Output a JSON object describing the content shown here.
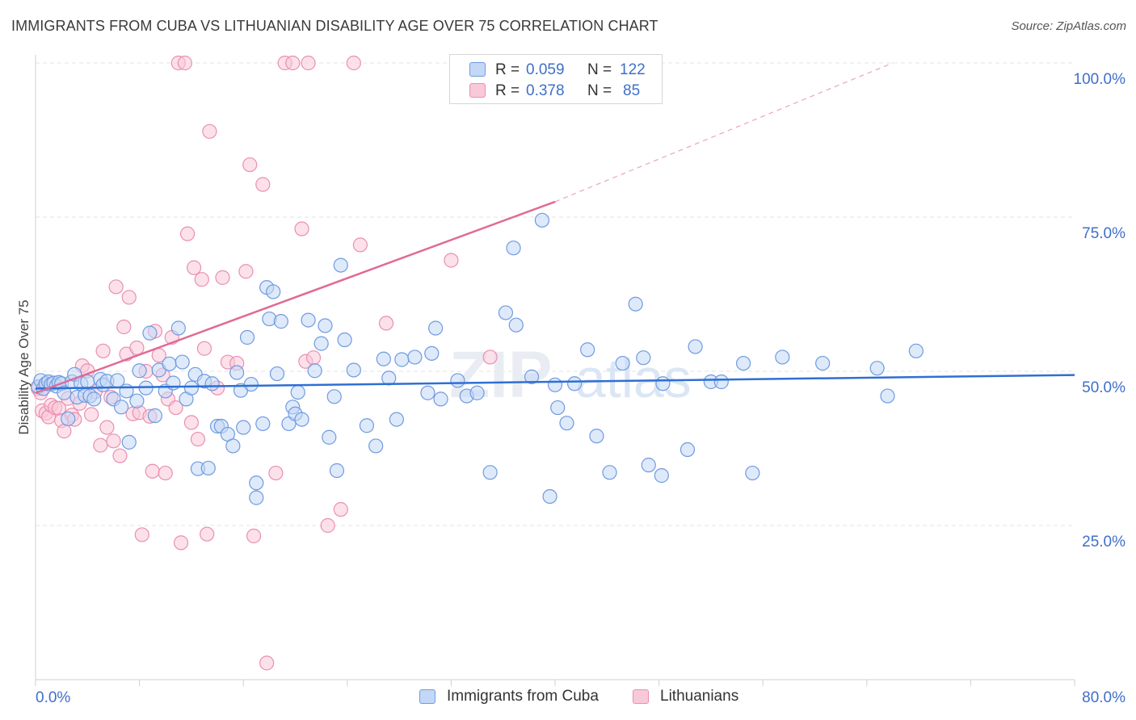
{
  "title": "IMMIGRANTS FROM CUBA VS LITHUANIAN DISABILITY AGE OVER 75 CORRELATION CHART",
  "source": "Source: ZipAtlas.com",
  "watermark": "ZIPatlas",
  "legend": {
    "rows": [
      {
        "r_label": "R =",
        "r_value": "0.059",
        "n_label": "N =",
        "n_value": "122",
        "color": "#6f9be0"
      },
      {
        "r_label": "R =",
        "r_value": "0.378",
        "n_label": "N =",
        "n_value": "85",
        "color": "#ea8fb0"
      }
    ]
  },
  "bottom_legend": [
    "Immigrants from Cuba",
    "Lithuanians"
  ],
  "chart_data": {
    "type": "scatter",
    "title": "IMMIGRANTS FROM CUBA VS LITHUANIAN DISABILITY AGE OVER 75 CORRELATION CHART",
    "xlabel": "",
    "ylabel": "Disability Age Over 75",
    "xlim": [
      0,
      80
    ],
    "ylim": [
      0,
      105
    ],
    "x_tick_labels": [
      "0.0%",
      "80.0%"
    ],
    "y_ticks": [
      25,
      50,
      75,
      100
    ],
    "y_tick_labels": [
      "25.0%",
      "50.0%",
      "75.0%",
      "100.0%"
    ],
    "grid": "horizontal dashed",
    "legend_position": "top-center",
    "series": [
      {
        "name": "Immigrants from Cuba",
        "color": "#6f9be0",
        "fill": "#c3d7f6",
        "trend": {
          "x": [
            0,
            80
          ],
          "y": [
            47.2,
            49.4
          ]
        },
        "points": [
          [
            0.2,
            47.5
          ],
          [
            0.4,
            48.5
          ],
          [
            0.6,
            47.2
          ],
          [
            0.8,
            48.0
          ],
          [
            1.0,
            48.3
          ],
          [
            1.2,
            47.9
          ],
          [
            1.4,
            48.1
          ],
          [
            1.6,
            47.6
          ],
          [
            1.8,
            48.2
          ],
          [
            2.0,
            48.0
          ],
          [
            2.2,
            46.5
          ],
          [
            2.5,
            42.3
          ],
          [
            2.8,
            48.3
          ],
          [
            3.0,
            49.5
          ],
          [
            3.2,
            45.8
          ],
          [
            3.5,
            48.0
          ],
          [
            3.8,
            46.1
          ],
          [
            4.0,
            48.3
          ],
          [
            4.2,
            46.0
          ],
          [
            4.5,
            45.5
          ],
          [
            5.0,
            48.7
          ],
          [
            5.2,
            47.8
          ],
          [
            5.5,
            48.4
          ],
          [
            6.0,
            45.5
          ],
          [
            6.3,
            48.5
          ],
          [
            6.6,
            44.2
          ],
          [
            7.0,
            46.8
          ],
          [
            7.2,
            38.5
          ],
          [
            7.8,
            45.2
          ],
          [
            8.0,
            50.1
          ],
          [
            8.5,
            47.3
          ],
          [
            8.8,
            56.2
          ],
          [
            9.2,
            42.8
          ],
          [
            9.5,
            50.2
          ],
          [
            10.0,
            46.8
          ],
          [
            10.3,
            51.2
          ],
          [
            10.6,
            48.1
          ],
          [
            11.0,
            57.0
          ],
          [
            11.3,
            51.5
          ],
          [
            11.6,
            45.5
          ],
          [
            12.0,
            47.3
          ],
          [
            12.3,
            49.5
          ],
          [
            12.5,
            34.2
          ],
          [
            13.0,
            48.4
          ],
          [
            13.3,
            34.3
          ],
          [
            13.6,
            48.0
          ],
          [
            14.0,
            41.1
          ],
          [
            14.3,
            41.1
          ],
          [
            14.8,
            39.8
          ],
          [
            15.2,
            37.9
          ],
          [
            15.5,
            49.8
          ],
          [
            15.8,
            46.9
          ],
          [
            16.0,
            40.9
          ],
          [
            16.3,
            55.5
          ],
          [
            16.6,
            47.9
          ],
          [
            17.0,
            31.9
          ],
          [
            17.0,
            29.5
          ],
          [
            17.5,
            41.5
          ],
          [
            17.8,
            63.6
          ],
          [
            18.0,
            58.5
          ],
          [
            18.3,
            62.9
          ],
          [
            18.6,
            49.6
          ],
          [
            18.9,
            58.1
          ],
          [
            19.5,
            41.5
          ],
          [
            19.8,
            44.2
          ],
          [
            20.0,
            43.1
          ],
          [
            20.2,
            46.6
          ],
          [
            20.5,
            42.2
          ],
          [
            21.0,
            58.3
          ],
          [
            21.5,
            50.1
          ],
          [
            22.0,
            54.5
          ],
          [
            22.3,
            57.4
          ],
          [
            22.6,
            39.3
          ],
          [
            23.0,
            45.9
          ],
          [
            23.2,
            33.9
          ],
          [
            23.5,
            67.2
          ],
          [
            23.8,
            55.1
          ],
          [
            24.5,
            50.2
          ],
          [
            25.5,
            41.2
          ],
          [
            26.2,
            37.9
          ],
          [
            26.8,
            52.0
          ],
          [
            27.2,
            48.9
          ],
          [
            27.8,
            42.2
          ],
          [
            28.2,
            51.9
          ],
          [
            29.2,
            52.3
          ],
          [
            30.2,
            46.5
          ],
          [
            30.5,
            52.9
          ],
          [
            30.8,
            57.0
          ],
          [
            31.2,
            45.5
          ],
          [
            32.5,
            48.5
          ],
          [
            33.2,
            46.0
          ],
          [
            34.0,
            46.5
          ],
          [
            35.0,
            33.6
          ],
          [
            36.2,
            59.5
          ],
          [
            37.0,
            57.5
          ],
          [
            36.8,
            70.0
          ],
          [
            38.2,
            49.1
          ],
          [
            39.0,
            74.5
          ],
          [
            39.6,
            29.7
          ],
          [
            40.0,
            47.8
          ],
          [
            40.2,
            44.1
          ],
          [
            40.9,
            41.6
          ],
          [
            41.5,
            48.0
          ],
          [
            42.5,
            53.5
          ],
          [
            43.2,
            39.5
          ],
          [
            44.2,
            33.6
          ],
          [
            45.2,
            51.3
          ],
          [
            46.2,
            60.9
          ],
          [
            46.8,
            52.2
          ],
          [
            47.2,
            34.8
          ],
          [
            48.2,
            33.1
          ],
          [
            48.3,
            48.0
          ],
          [
            50.2,
            37.3
          ],
          [
            50.8,
            54.0
          ],
          [
            52.0,
            48.3
          ],
          [
            52.8,
            48.3
          ],
          [
            54.5,
            51.3
          ],
          [
            55.2,
            33.5
          ],
          [
            57.5,
            52.3
          ],
          [
            60.6,
            51.3
          ],
          [
            64.8,
            50.5
          ],
          [
            65.6,
            46.0
          ],
          [
            67.8,
            53.3
          ]
        ]
      },
      {
        "name": "Lithuanians",
        "color": "#ea8fb0",
        "fill": "#f9c9d8",
        "trend": {
          "x": [
            0,
            40
          ],
          "y": [
            46.5,
            77.5
          ],
          "dashed_to": {
            "x": 66,
            "y": 100
          }
        },
        "points": [
          [
            0.2,
            47.2
          ],
          [
            0.4,
            46.5
          ],
          [
            0.5,
            43.6
          ],
          [
            0.8,
            43.2
          ],
          [
            1.0,
            42.6
          ],
          [
            1.2,
            44.5
          ],
          [
            1.5,
            44.1
          ],
          [
            1.8,
            44.0
          ],
          [
            2.0,
            42.0
          ],
          [
            2.2,
            40.3
          ],
          [
            2.5,
            45.6
          ],
          [
            2.8,
            42.9
          ],
          [
            3.0,
            42.2
          ],
          [
            3.4,
            44.8
          ],
          [
            3.6,
            50.9
          ],
          [
            4.0,
            50.1
          ],
          [
            4.3,
            43.0
          ],
          [
            4.6,
            46.7
          ],
          [
            5.0,
            38.0
          ],
          [
            5.2,
            53.3
          ],
          [
            5.5,
            40.9
          ],
          [
            5.8,
            45.8
          ],
          [
            6.0,
            38.7
          ],
          [
            6.2,
            63.7
          ],
          [
            6.5,
            36.3
          ],
          [
            6.8,
            57.2
          ],
          [
            7.0,
            52.8
          ],
          [
            7.2,
            62.0
          ],
          [
            7.5,
            43.1
          ],
          [
            7.8,
            53.8
          ],
          [
            8.0,
            43.3
          ],
          [
            8.2,
            23.5
          ],
          [
            8.5,
            50.0
          ],
          [
            8.8,
            42.7
          ],
          [
            9.0,
            33.8
          ],
          [
            9.2,
            56.5
          ],
          [
            9.5,
            52.6
          ],
          [
            9.8,
            49.4
          ],
          [
            10.0,
            33.5
          ],
          [
            10.2,
            45.5
          ],
          [
            10.5,
            55.5
          ],
          [
            10.8,
            44.1
          ],
          [
            11.0,
            100.0
          ],
          [
            11.2,
            22.2
          ],
          [
            11.5,
            100.0
          ],
          [
            11.7,
            72.3
          ],
          [
            12.0,
            41.7
          ],
          [
            12.2,
            66.8
          ],
          [
            12.5,
            39.0
          ],
          [
            12.8,
            64.9
          ],
          [
            13.0,
            53.7
          ],
          [
            13.2,
            23.6
          ],
          [
            13.4,
            88.9
          ],
          [
            14.0,
            47.3
          ],
          [
            14.4,
            65.2
          ],
          [
            14.8,
            51.5
          ],
          [
            15.5,
            51.3
          ],
          [
            16.2,
            66.2
          ],
          [
            16.5,
            83.5
          ],
          [
            16.8,
            23.3
          ],
          [
            17.5,
            80.3
          ],
          [
            17.8,
            2.7
          ],
          [
            18.5,
            33.5
          ],
          [
            19.2,
            100.0
          ],
          [
            19.8,
            100.0
          ],
          [
            20.5,
            73.1
          ],
          [
            20.8,
            51.6
          ],
          [
            21.0,
            100.0
          ],
          [
            21.4,
            52.2
          ],
          [
            22.5,
            25.0
          ],
          [
            23.5,
            27.6
          ],
          [
            24.5,
            100.0
          ],
          [
            25.0,
            70.5
          ],
          [
            27.0,
            57.8
          ],
          [
            32.0,
            68.0
          ],
          [
            35.0,
            52.3
          ]
        ]
      }
    ]
  }
}
